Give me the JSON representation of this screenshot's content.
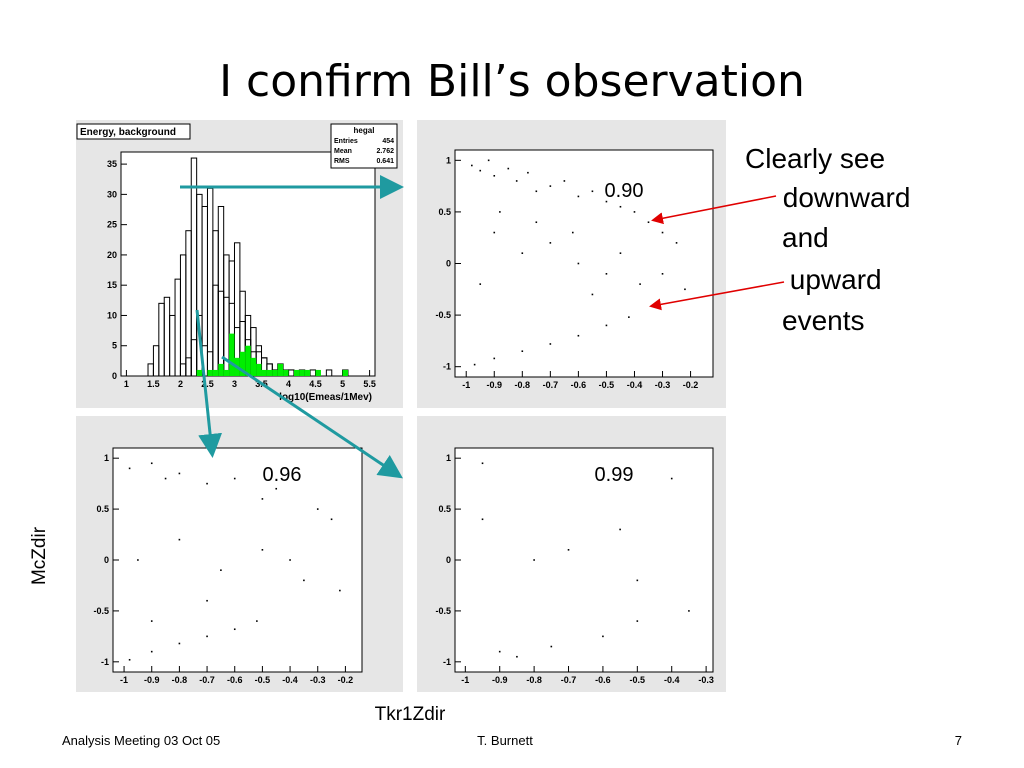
{
  "title": "I confirm Bill’s observation",
  "notes": [
    "Clearly see",
    " downward",
    "and",
    " upward",
    "events"
  ],
  "y_axis_label": "McZdir",
  "x_axis_label": "Tkr1Zdir",
  "footer": {
    "left": "Analysis Meeting 03 Oct 05",
    "center": "T. Burnett",
    "right": "7"
  },
  "chart_data": [
    {
      "type": "histogram",
      "title": "Energy, background",
      "xlabel": "log10(Emeas/1Mev)",
      "stats_title": "hegal",
      "stats": [
        {
          "label": "Entries",
          "value": 454
        },
        {
          "label": "Mean",
          "value": 2.762
        },
        {
          "label": "RMS",
          "value": 0.641
        }
      ],
      "bins": [
        1,
        1.1,
        1.2,
        1.3,
        1.4,
        1.5,
        1.6,
        1.7,
        1.8,
        1.9,
        2,
        2.1,
        2.2,
        2.3,
        2.4,
        2.5,
        2.6,
        2.7,
        2.8,
        2.9,
        3,
        3.1,
        3.2,
        3.3,
        3.4,
        3.5,
        3.6,
        3.7,
        3.8,
        3.9,
        4,
        4.1,
        4.2,
        4.3,
        4.4,
        4.5,
        4.6,
        4.7,
        4.8,
        4.9,
        5,
        5.1,
        5.2,
        5.3,
        5.4,
        5.5
      ],
      "series": [
        {
          "color": "#ffffff",
          "values": [
            0,
            0,
            0,
            0,
            2,
            5,
            12,
            13,
            10,
            16,
            20,
            24,
            36,
            30,
            28,
            31,
            24,
            28,
            20,
            19,
            22,
            14,
            10,
            8,
            5,
            3,
            2,
            1,
            2,
            1,
            1,
            0,
            1,
            0,
            1,
            0,
            0,
            1,
            0,
            0,
            1,
            0,
            0,
            0,
            0
          ]
        },
        {
          "color": "#ffffff",
          "values": [
            0,
            0,
            0,
            0,
            0,
            0,
            0,
            0,
            0,
            0,
            2,
            3,
            6,
            10,
            5,
            4,
            15,
            14,
            13,
            12,
            8,
            9,
            6,
            4,
            4,
            3,
            2,
            1,
            1,
            0,
            1,
            0,
            0,
            0,
            0,
            0,
            0,
            0,
            0,
            0,
            0,
            0,
            0,
            0,
            0
          ]
        },
        {
          "color": "#00ee00",
          "values": [
            0,
            0,
            0,
            0,
            0,
            0,
            0,
            0,
            0,
            0,
            0,
            0,
            0,
            1,
            0,
            1,
            1,
            2,
            1,
            7,
            3,
            4,
            5,
            3,
            2,
            1,
            1,
            1,
            2,
            1,
            0,
            1,
            1,
            1,
            0,
            1,
            0,
            0,
            0,
            0,
            1,
            0,
            0,
            0,
            0
          ]
        }
      ],
      "xlim": [
        0.9,
        5.6
      ],
      "xticks": [
        1,
        1.5,
        2,
        2.5,
        3,
        3.5,
        4,
        4.5,
        5,
        5.5
      ],
      "ylim": [
        0,
        37
      ],
      "yticks": [
        0,
        5,
        10,
        15,
        20,
        25,
        30,
        35
      ]
    },
    {
      "type": "scatter",
      "annotation": "0.90",
      "color": "#000000",
      "x": [
        -0.98,
        -0.95,
        -0.92,
        -0.9,
        -0.85,
        -0.82,
        -0.78,
        -0.75,
        -0.7,
        -0.65,
        -0.6,
        -0.55,
        -0.5,
        -0.45,
        -0.4,
        -0.35,
        -0.3,
        -0.25,
        -0.9,
        -0.8,
        -0.7,
        -0.6,
        -0.5,
        -0.95,
        -0.88,
        -0.75,
        -0.62,
        -0.55,
        -0.45,
        -0.38,
        -0.3,
        -0.22,
        -0.97,
        -0.9,
        -0.8,
        -0.7,
        -0.6,
        -0.5,
        -0.42
      ],
      "values": [
        0.95,
        0.9,
        1.0,
        0.85,
        0.92,
        0.8,
        0.88,
        0.7,
        0.75,
        0.8,
        0.65,
        0.7,
        0.6,
        0.55,
        0.5,
        0.4,
        0.3,
        0.2,
        0.3,
        0.1,
        0.2,
        0.0,
        -0.1,
        -0.2,
        0.5,
        0.4,
        0.3,
        -0.3,
        0.1,
        -0.2,
        -0.1,
        -0.25,
        -0.98,
        -0.92,
        -0.85,
        -0.78,
        -0.7,
        -0.6,
        -0.52
      ],
      "xlim": [
        -1.04,
        -0.12
      ],
      "xticks": [
        -1,
        -0.9,
        -0.8,
        -0.7,
        -0.6,
        -0.5,
        -0.4,
        -0.3,
        -0.2
      ],
      "ylim": [
        -1.1,
        1.1
      ],
      "yticks": [
        -1,
        -0.5,
        0,
        0.5,
        1
      ]
    },
    {
      "type": "scatter",
      "annotation": "0.96",
      "color": "#000000",
      "x": [
        -0.98,
        -0.9,
        -0.85,
        -0.8,
        -0.7,
        -0.6,
        -0.5,
        -0.45,
        -0.3,
        -0.25,
        -0.95,
        -0.8,
        -0.65,
        -0.5,
        -0.35,
        -0.22,
        -0.9,
        -0.7,
        -0.4,
        -0.98,
        -0.9,
        -0.8,
        -0.7,
        -0.6,
        -0.52
      ],
      "values": [
        0.9,
        0.95,
        0.8,
        0.85,
        0.75,
        0.8,
        0.6,
        0.7,
        0.5,
        0.4,
        0.0,
        0.2,
        -0.1,
        0.1,
        -0.2,
        -0.3,
        -0.6,
        -0.4,
        0.0,
        -0.98,
        -0.9,
        -0.82,
        -0.75,
        -0.68,
        -0.6
      ],
      "xlim": [
        -1.04,
        -0.14
      ],
      "xticks": [
        -1,
        -0.9,
        -0.8,
        -0.7,
        -0.6,
        -0.5,
        -0.4,
        -0.3,
        -0.2
      ],
      "ylim": [
        -1.1,
        1.1
      ],
      "yticks": [
        -1,
        -0.5,
        0,
        0.5,
        1
      ]
    },
    {
      "type": "scatter",
      "annotation": "0.99",
      "color": "#000000",
      "x": [
        -0.95,
        -0.6,
        -0.4,
        -0.8,
        -0.55,
        -0.35,
        -0.5,
        -0.7,
        -0.9,
        -0.85,
        -0.75,
        -0.6,
        -0.5,
        -0.95
      ],
      "values": [
        0.95,
        0.9,
        0.8,
        0.0,
        0.3,
        -0.5,
        -0.2,
        0.1,
        -0.9,
        -0.95,
        -0.85,
        -0.75,
        -0.6,
        0.4
      ],
      "xlim": [
        -1.03,
        -0.28
      ],
      "xticks": [
        -1,
        -0.9,
        -0.8,
        -0.7,
        -0.6,
        -0.5,
        -0.4,
        -0.3
      ],
      "ylim": [
        -1.1,
        1.1
      ],
      "yticks": [
        -1,
        -0.5,
        0,
        0.5,
        1
      ]
    }
  ]
}
